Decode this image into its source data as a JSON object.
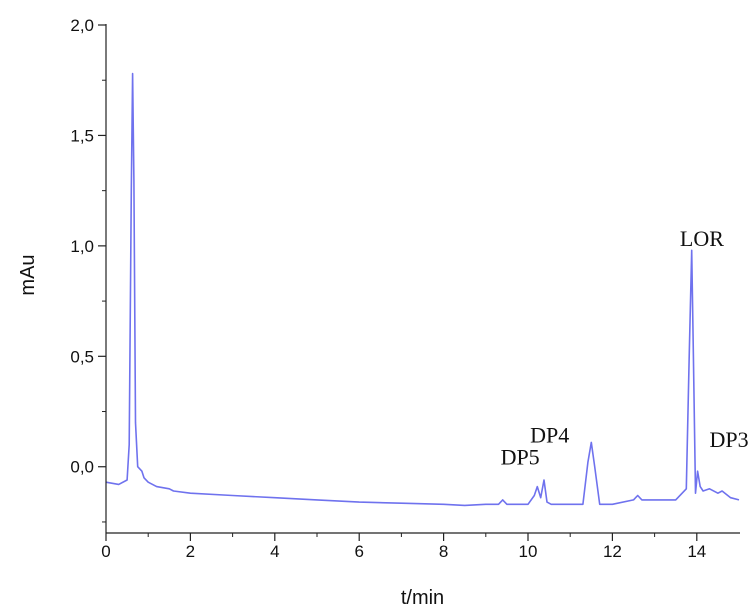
{
  "chart_data": {
    "type": "line",
    "title": "",
    "xlabel": "t/min",
    "ylabel": "mAu",
    "xlim": [
      0,
      15
    ],
    "ylim": [
      -0.3,
      2.0
    ],
    "grid": false,
    "line_color": "#6f72ee",
    "x_ticks": [
      0,
      2,
      4,
      6,
      8,
      10,
      12,
      14
    ],
    "x_tick_labels": [
      "0",
      "2",
      "4",
      "6",
      "8",
      "10",
      "12",
      "14"
    ],
    "y_ticks": [
      0.0,
      0.5,
      1.0,
      1.5,
      2.0
    ],
    "y_tick_labels": [
      "0,0",
      "0,5",
      "1,0",
      "1,5",
      "2,0"
    ],
    "series": [
      {
        "x": [
          0.0,
          0.3,
          0.5,
          0.55,
          0.6,
          0.63,
          0.66,
          0.7,
          0.75,
          0.8,
          0.85,
          0.9,
          1.0,
          1.2,
          1.5,
          1.6,
          2.0,
          3.0,
          4.0,
          5.0,
          6.0,
          7.0,
          8.0,
          8.5,
          9.0,
          9.3,
          9.4,
          9.5,
          9.8,
          10.0,
          10.15,
          10.22,
          10.3,
          10.38,
          10.45,
          10.55,
          10.7,
          11.0,
          11.3,
          11.42,
          11.5,
          11.58,
          11.7,
          12.0,
          12.5,
          12.6,
          12.7,
          13.0,
          13.5,
          13.75,
          13.82,
          13.88,
          13.92,
          13.97,
          14.02,
          14.08,
          14.15,
          14.3,
          14.5,
          14.6,
          14.8,
          15.0
        ],
        "y": [
          -0.07,
          -0.08,
          -0.06,
          0.1,
          1.25,
          1.78,
          1.3,
          0.2,
          0.0,
          -0.01,
          -0.02,
          -0.05,
          -0.07,
          -0.09,
          -0.1,
          -0.11,
          -0.12,
          -0.13,
          -0.14,
          -0.15,
          -0.16,
          -0.165,
          -0.17,
          -0.175,
          -0.17,
          -0.17,
          -0.15,
          -0.17,
          -0.17,
          -0.17,
          -0.13,
          -0.09,
          -0.14,
          -0.06,
          -0.16,
          -0.17,
          -0.17,
          -0.17,
          -0.17,
          0.02,
          0.11,
          0.0,
          -0.17,
          -0.17,
          -0.15,
          -0.13,
          -0.15,
          -0.15,
          -0.15,
          -0.1,
          0.5,
          0.98,
          0.5,
          -0.12,
          -0.02,
          -0.09,
          -0.11,
          -0.1,
          -0.12,
          -0.11,
          -0.14,
          -0.15
        ]
      }
    ],
    "annotations": [
      {
        "text": "DP5",
        "x": 9.35,
        "y": 0.01
      },
      {
        "text": "DP4",
        "x": 10.05,
        "y": 0.11
      },
      {
        "text": "LOR",
        "x": 13.6,
        "y": 1.0
      },
      {
        "text": "DP3",
        "x": 14.3,
        "y": 0.09
      }
    ]
  }
}
